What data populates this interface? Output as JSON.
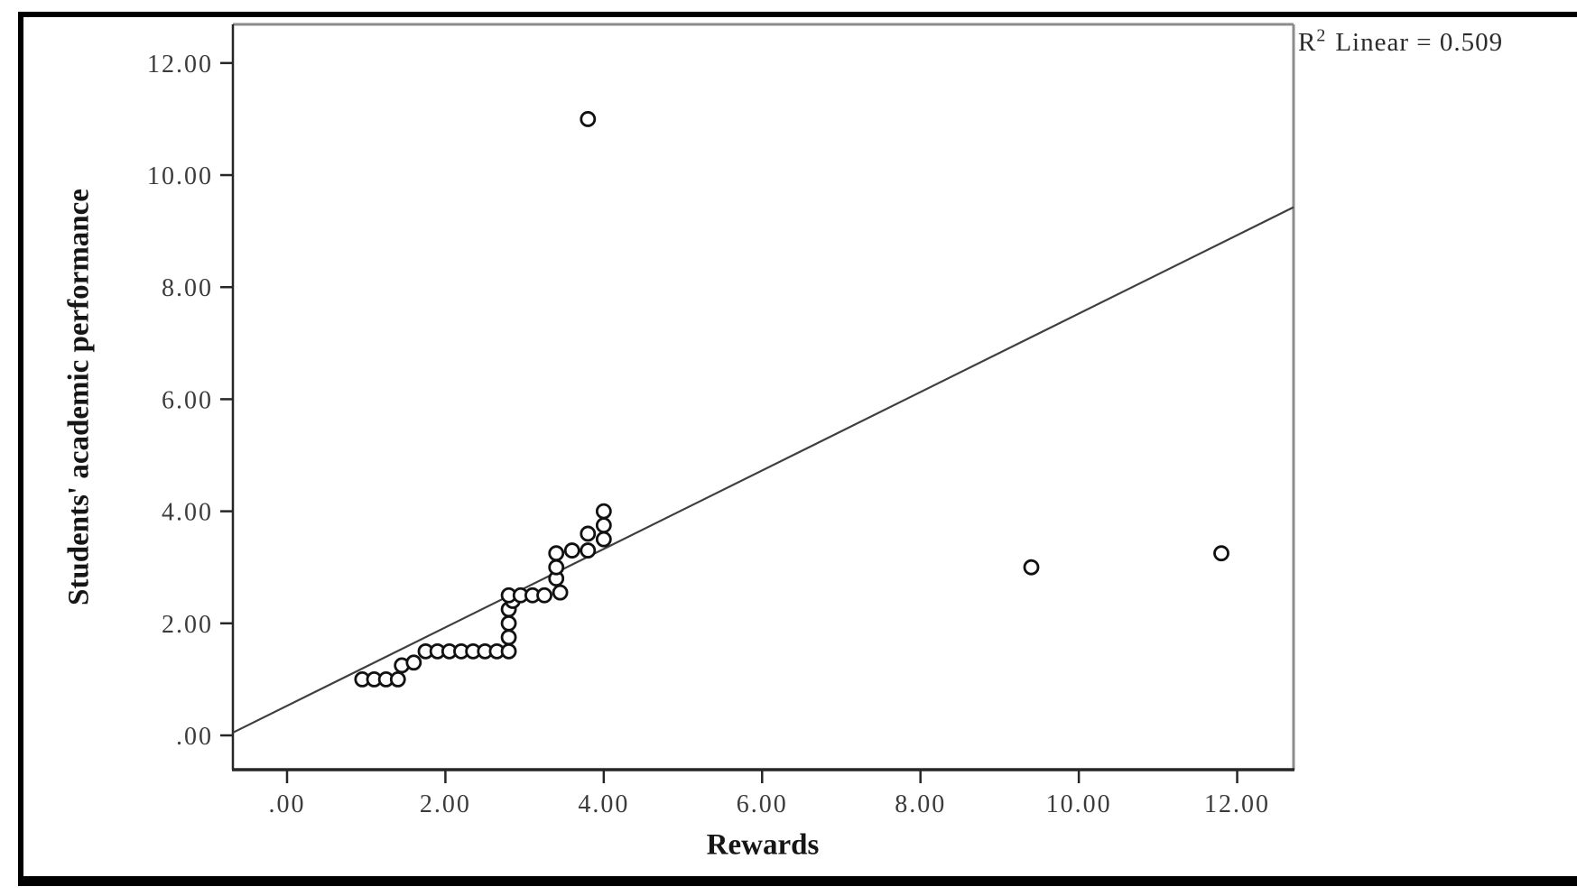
{
  "chart_data": {
    "type": "scatter",
    "title": "",
    "xlabel": "Rewards",
    "ylabel": "Students' academic performance",
    "xlim": [
      -0.684,
      12.712
    ],
    "ylim": [
      -0.612,
      12.69
    ],
    "grid": false,
    "x_ticks": {
      "values": [
        0,
        2,
        4,
        6,
        8,
        10,
        12
      ],
      "labels": [
        ".00",
        "2.00",
        "4.00",
        "6.00",
        "8.00",
        "10.00",
        "12.00"
      ]
    },
    "y_ticks": {
      "values": [
        0,
        2,
        4,
        6,
        8,
        10,
        12
      ],
      "labels": [
        ".00",
        "2.00",
        "4.00",
        "6.00",
        "8.00",
        "10.00",
        "12.00"
      ]
    },
    "points": [
      [
        0.95,
        1.0
      ],
      [
        1.1,
        1.0
      ],
      [
        1.25,
        1.0
      ],
      [
        1.4,
        1.0
      ],
      [
        1.45,
        1.25
      ],
      [
        1.6,
        1.3
      ],
      [
        1.75,
        1.5
      ],
      [
        1.9,
        1.5
      ],
      [
        2.05,
        1.5
      ],
      [
        2.2,
        1.5
      ],
      [
        2.35,
        1.5
      ],
      [
        2.5,
        1.5
      ],
      [
        2.65,
        1.5
      ],
      [
        2.8,
        1.5
      ],
      [
        2.8,
        1.75
      ],
      [
        2.8,
        2.0
      ],
      [
        2.8,
        2.25
      ],
      [
        2.85,
        2.4
      ],
      [
        2.8,
        2.5
      ],
      [
        2.95,
        2.5
      ],
      [
        3.1,
        2.5
      ],
      [
        3.25,
        2.5
      ],
      [
        3.45,
        2.55
      ],
      [
        3.4,
        2.8
      ],
      [
        3.4,
        3.0
      ],
      [
        3.4,
        3.25
      ],
      [
        3.6,
        3.3
      ],
      [
        3.8,
        3.3
      ],
      [
        3.8,
        3.6
      ],
      [
        4.0,
        3.5
      ],
      [
        4.0,
        3.75
      ],
      [
        4.0,
        4.0
      ],
      [
        3.8,
        11.0
      ],
      [
        9.4,
        3.0
      ],
      [
        11.8,
        3.25
      ]
    ],
    "regression": {
      "slope": 0.7,
      "intercept": 0.528,
      "r_squared": 0.509
    },
    "annotation": {
      "r_label": "R",
      "exponent": "2",
      "text": "Linear = 0.509"
    },
    "legend": null,
    "marker": "open-circle",
    "colors": {
      "point_stroke": "#111111",
      "point_fill": "#ffffff",
      "fit_line": "#3f3f3f",
      "axis_dark": "#262626",
      "axis_gray": "#8c8c8c",
      "tick_text": "#3b3b3b",
      "frame": "#000000",
      "background": "#ffffff"
    }
  }
}
